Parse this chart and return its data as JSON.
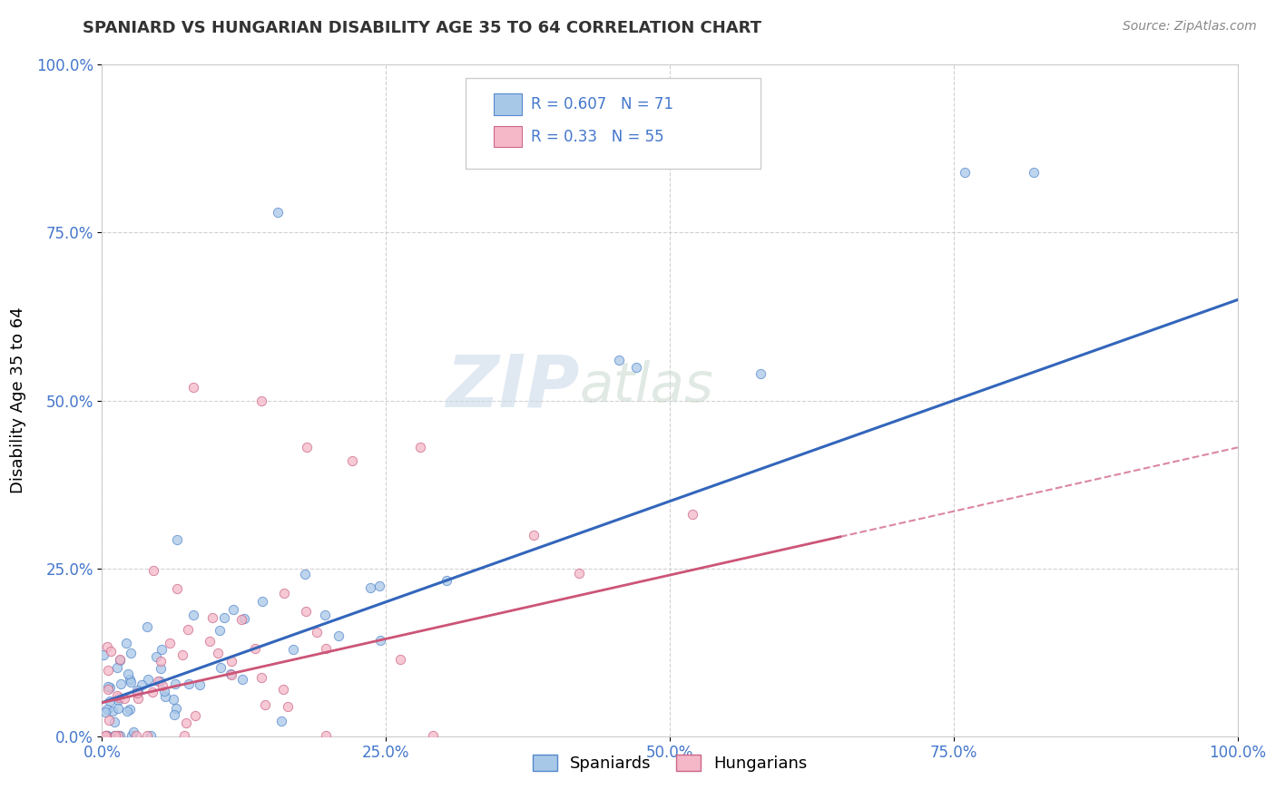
{
  "title": "SPANIARD VS HUNGARIAN DISABILITY AGE 35 TO 64 CORRELATION CHART",
  "source": "Source: ZipAtlas.com",
  "ylabel": "Disability Age 35 to 64",
  "xlim": [
    0.0,
    1.0
  ],
  "ylim": [
    0.0,
    1.0
  ],
  "x_ticks": [
    0.0,
    0.25,
    0.5,
    0.75,
    1.0
  ],
  "y_ticks": [
    0.0,
    0.25,
    0.5,
    0.75,
    1.0
  ],
  "x_tick_labels": [
    "0.0%",
    "25.0%",
    "50.0%",
    "75.0%",
    "100.0%"
  ],
  "y_tick_labels": [
    "0.0%",
    "25.0%",
    "50.0%",
    "75.0%",
    "100.0%"
  ],
  "spaniards_color": "#a8c8e8",
  "hungarians_color": "#f4b8c8",
  "spaniards_edge_color": "#5588cc",
  "hungarians_edge_color": "#cc6688",
  "spaniards_line_color": "#3366bb",
  "hungarians_line_color": "#cc5577",
  "R_spaniards": 0.607,
  "N_spaniards": 71,
  "R_hungarians": 0.33,
  "N_hungarians": 55,
  "watermark_zip": "ZIP",
  "watermark_atlas": "atlas",
  "background_color": "#ffffff",
  "grid_color": "#cccccc",
  "tick_color": "#4477cc",
  "title_color": "#333333",
  "source_color": "#888888"
}
